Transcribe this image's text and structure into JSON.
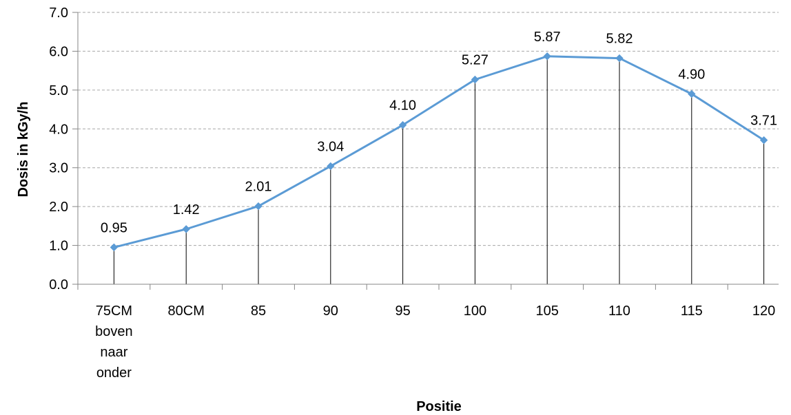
{
  "chart_data": {
    "type": "line",
    "categories": [
      "75CM boven naar onder",
      "80CM",
      "85",
      "90",
      "95",
      "100",
      "105",
      "110",
      "115",
      "120"
    ],
    "series": [
      {
        "values": [
          0.95,
          1.42,
          2.01,
          3.04,
          4.1,
          5.27,
          5.87,
          5.82,
          4.9,
          3.71
        ]
      }
    ],
    "data_labels": [
      "0.95",
      "1.42",
      "2.01",
      "3.04",
      "4.10",
      "5.27",
      "5.87",
      "5.82",
      "4.90",
      "3.71"
    ],
    "y_ticks": [
      "0.0",
      "1.0",
      "2.0",
      "3.0",
      "4.0",
      "5.0",
      "6.0",
      "7.0"
    ],
    "ylim": [
      0,
      7
    ],
    "xlabel": "Positie",
    "ylabel": "Dosis in kGy/h",
    "grid": true,
    "drop_lines": true,
    "colors": {
      "line": "#5B9BD5",
      "marker": "#5B9BD5",
      "grid": "#A6A6A6",
      "axis": "#868686",
      "drop_line": "#000000"
    }
  }
}
